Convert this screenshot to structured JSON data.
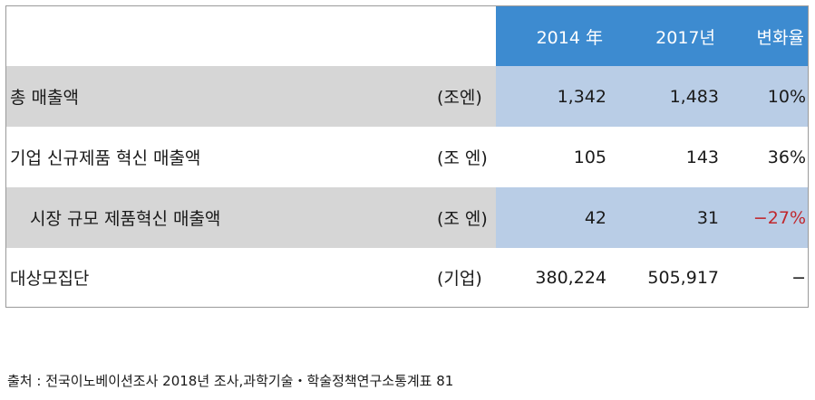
{
  "table": {
    "headers": [
      "2014 年",
      "2017년",
      "변화율"
    ],
    "rows": [
      {
        "label": "총 매출액",
        "unit": "(조엔)",
        "values": [
          "1,342",
          "1,483",
          "10%"
        ]
      },
      {
        "label": "기업 신규제품 혁신 매출액",
        "unit": "(조 엔)",
        "values": [
          "105",
          "143",
          "36%"
        ]
      },
      {
        "label": "시장 규모 제품혁신 매출액",
        "unit": "(조 엔)",
        "values": [
          "42",
          "31",
          "−27%"
        ]
      },
      {
        "label": "대상모집단",
        "unit": "(기업)",
        "values": [
          "380,224",
          "505,917",
          "−"
        ]
      }
    ]
  },
  "footnote": "출처 : 전국이노베이션조사 2018년 조사,과학기술・학술정책연구소통계표 81",
  "colors": {
    "header_blue": "#3d8bd0",
    "row_gray": "#d6d6d6",
    "cell_lightblue": "#b9cde6",
    "negative_red": "#c0282e"
  }
}
